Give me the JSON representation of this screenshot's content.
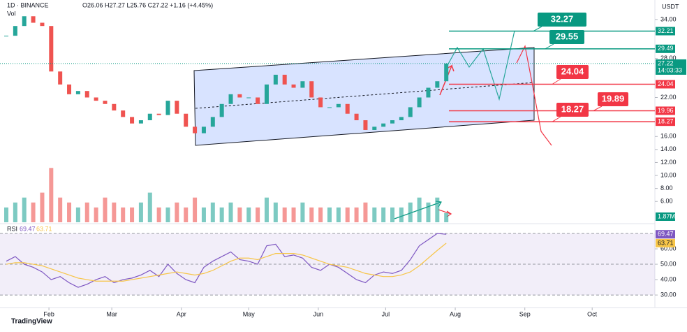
{
  "chart_data": {
    "type": "candlestick",
    "header": {
      "symbol": "1D · BINANCE",
      "ohlc": "O26.06 H27.27 L25.76 C27.22 +1.16 (+4.45%)",
      "volume_title": "Vol"
    },
    "currency": "USDT",
    "x": [
      12,
      16,
      20,
      24,
      28,
      32,
      36,
      40,
      44,
      48,
      52,
      56,
      60,
      64,
      68,
      72,
      76,
      80,
      84,
      88,
      92,
      96,
      100,
      104,
      108,
      112,
      116,
      120,
      124,
      128,
      132,
      136,
      140,
      144,
      148,
      152,
      156,
      160,
      164,
      168,
      172,
      176,
      180,
      184,
      188,
      192,
      196,
      200,
      204,
      208
    ],
    "xlim": [
      9.2,
      300
    ],
    "xticks": [
      {
        "value": 31,
        "label": "Feb"
      },
      {
        "value": 59,
        "label": "Mar"
      },
      {
        "value": 90,
        "label": "Apr"
      },
      {
        "value": 120,
        "label": "May"
      },
      {
        "value": 151,
        "label": "Jun"
      },
      {
        "value": 181,
        "label": "Jul"
      },
      {
        "value": 212,
        "label": "Aug"
      },
      {
        "value": 243,
        "label": "Sep"
      },
      {
        "value": 273,
        "label": "Oct"
      }
    ],
    "series": [
      {
        "name": "Price",
        "values": [
          31.5,
          33,
          34.5,
          33.5,
          33,
          26,
          24,
          22.5,
          23,
          22,
          21.5,
          21,
          20,
          19,
          18,
          18.5,
          19.5,
          19.3,
          21.5,
          19.5,
          17.5,
          16.5,
          17.5,
          19,
          21,
          22.5,
          22,
          22,
          21,
          24,
          25.5,
          24,
          23.5,
          24.5,
          22,
          20.5,
          20.5,
          21,
          19.5,
          18.5,
          17,
          17.5,
          18,
          18.5,
          19,
          20.5,
          22,
          23.5,
          24.5,
          27.22
        ],
        "up_color": "#26a69a",
        "down_color": "#ef5350"
      }
    ],
    "ylim": [
      2.8,
      37
    ],
    "yticks": [
      {
        "value": 34,
        "label": "34.00"
      },
      {
        "value": 28,
        "label": "28.00"
      },
      {
        "value": 22,
        "label": "22.00"
      },
      {
        "value": 16,
        "label": "16.00"
      },
      {
        "value": 14,
        "label": "14.00"
      },
      {
        "value": 12,
        "label": "12.00"
      },
      {
        "value": 10,
        "label": "10.00"
      },
      {
        "value": 8,
        "label": "8.00"
      },
      {
        "value": 6,
        "label": "6.00"
      }
    ],
    "last_price": {
      "value": 27.22,
      "countdown": "14:03:33"
    },
    "volume": {
      "values": [
        3,
        4,
        5,
        4,
        6,
        11,
        5,
        4,
        3,
        4,
        3,
        5,
        4,
        3,
        3,
        4,
        6,
        3,
        3,
        4,
        3,
        5,
        3,
        4,
        3,
        4,
        3,
        3,
        3,
        5,
        4,
        3,
        3,
        4,
        3,
        3,
        3,
        3,
        3,
        3,
        4,
        3,
        3,
        3,
        3,
        4,
        5,
        4,
        5,
        1.87
      ],
      "ylim": [
        0,
        45
      ],
      "last_label": "1.87M"
    },
    "levels": [
      {
        "value": 32.21,
        "target": 32.27,
        "color": "#089981"
      },
      {
        "value": 29.49,
        "target": 29.55,
        "color": "#089981"
      },
      {
        "value": 24.04,
        "target": 24.04,
        "color": "#f23645"
      },
      {
        "value": 19.96,
        "target": 19.89,
        "color": "#f23645"
      },
      {
        "value": 18.27,
        "target": 18.27,
        "color": "#f23645"
      }
    ],
    "rsi": {
      "title": "RSI",
      "values": [
        52,
        55,
        50,
        48,
        45,
        40,
        42,
        38,
        35,
        37,
        40,
        42,
        38,
        40,
        41,
        43,
        46,
        42,
        50,
        44,
        40,
        38,
        48,
        52,
        55,
        58,
        53,
        52,
        50,
        62,
        63,
        55,
        56,
        54,
        48,
        46,
        50,
        48,
        44,
        40,
        38,
        43,
        45,
        44,
        46,
        53,
        62,
        66,
        70,
        69.47
      ],
      "ma": [
        50,
        51,
        51,
        50,
        49,
        47,
        45,
        43,
        41,
        40,
        39,
        39,
        39,
        39,
        40,
        41,
        42,
        43,
        44,
        45,
        44,
        43,
        44,
        46,
        49,
        52,
        54,
        54,
        53,
        55,
        57,
        57,
        57,
        56,
        54,
        52,
        50,
        49,
        48,
        46,
        44,
        43,
        42,
        42,
        43,
        45,
        49,
        54,
        59,
        63.71
      ],
      "color": "#7e57c2",
      "ma_color": "#f7c548",
      "ylim": [
        25.5,
        74.1
      ],
      "yticks": [
        {
          "value": 60,
          "label": "60.00"
        },
        {
          "value": 50,
          "label": "50.00"
        },
        {
          "value": 40,
          "label": "40.00"
        },
        {
          "value": 30,
          "label": "30.00"
        }
      ],
      "bands": [
        70,
        50,
        30
      ]
    },
    "brand": "TradingView"
  }
}
